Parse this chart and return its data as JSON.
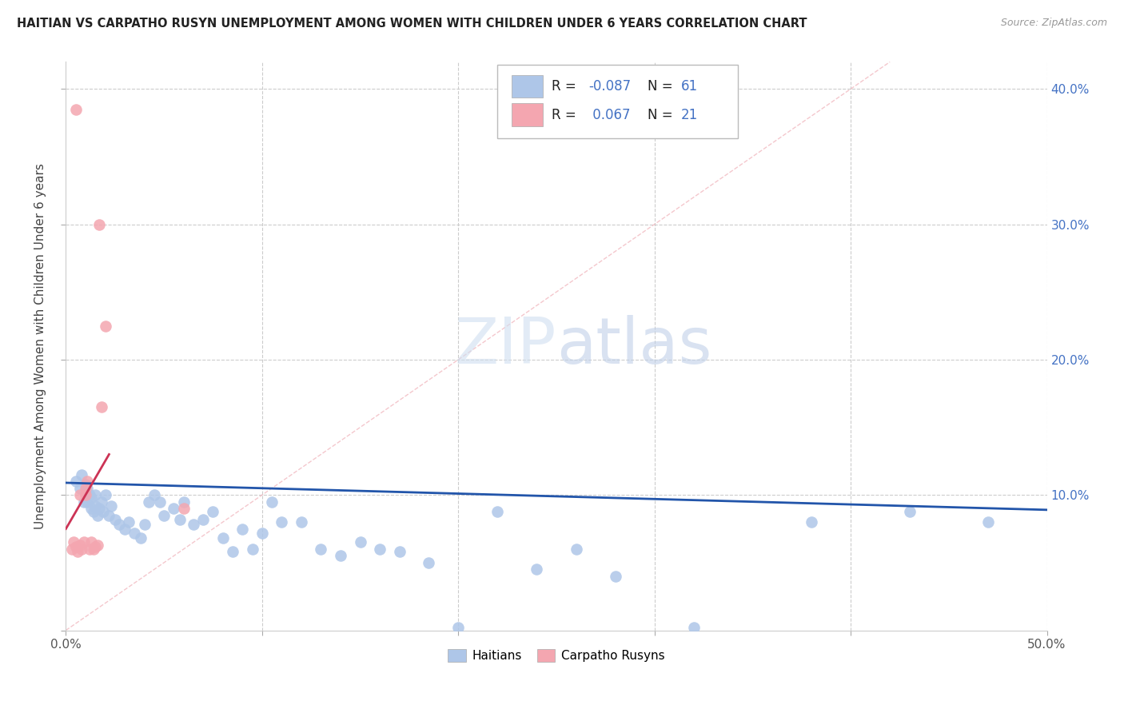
{
  "title": "HAITIAN VS CARPATHO RUSYN UNEMPLOYMENT AMONG WOMEN WITH CHILDREN UNDER 6 YEARS CORRELATION CHART",
  "source": "Source: ZipAtlas.com",
  "ylabel": "Unemployment Among Women with Children Under 6 years",
  "xlim": [
    0.0,
    0.5
  ],
  "ylim": [
    0.0,
    0.42
  ],
  "legend_haitian": "Haitians",
  "legend_carpatho": "Carpatho Rusyns",
  "r_haitian": "-0.087",
  "n_haitian": "61",
  "r_carpatho": "0.067",
  "n_carpatho": "21",
  "haitian_color": "#aec6e8",
  "carpatho_color": "#f4a6b0",
  "haitian_line_color": "#2255aa",
  "carpatho_line_color": "#cc3355",
  "watermark": "ZIPatlas",
  "haitian_points_x": [
    0.005,
    0.007,
    0.008,
    0.009,
    0.01,
    0.01,
    0.011,
    0.011,
    0.012,
    0.013,
    0.013,
    0.014,
    0.015,
    0.015,
    0.016,
    0.017,
    0.018,
    0.019,
    0.02,
    0.022,
    0.023,
    0.025,
    0.027,
    0.03,
    0.032,
    0.035,
    0.038,
    0.04,
    0.042,
    0.045,
    0.048,
    0.05,
    0.055,
    0.058,
    0.06,
    0.065,
    0.07,
    0.075,
    0.08,
    0.085,
    0.09,
    0.095,
    0.1,
    0.105,
    0.11,
    0.12,
    0.13,
    0.14,
    0.15,
    0.16,
    0.17,
    0.185,
    0.2,
    0.22,
    0.24,
    0.26,
    0.28,
    0.32,
    0.38,
    0.43,
    0.47
  ],
  "haitian_points_y": [
    0.11,
    0.105,
    0.115,
    0.095,
    0.1,
    0.108,
    0.095,
    0.105,
    0.1,
    0.09,
    0.098,
    0.088,
    0.092,
    0.1,
    0.085,
    0.09,
    0.095,
    0.088,
    0.1,
    0.085,
    0.092,
    0.082,
    0.078,
    0.075,
    0.08,
    0.072,
    0.068,
    0.078,
    0.095,
    0.1,
    0.095,
    0.085,
    0.09,
    0.082,
    0.095,
    0.078,
    0.082,
    0.088,
    0.068,
    0.058,
    0.075,
    0.06,
    0.072,
    0.095,
    0.08,
    0.08,
    0.06,
    0.055,
    0.065,
    0.06,
    0.058,
    0.05,
    0.002,
    0.088,
    0.045,
    0.06,
    0.04,
    0.002,
    0.08,
    0.088,
    0.08
  ],
  "carpatho_points_x": [
    0.003,
    0.004,
    0.005,
    0.005,
    0.006,
    0.007,
    0.007,
    0.008,
    0.009,
    0.01,
    0.01,
    0.011,
    0.012,
    0.013,
    0.014,
    0.015,
    0.016,
    0.017,
    0.018,
    0.02,
    0.06
  ],
  "carpatho_points_y": [
    0.06,
    0.065,
    0.385,
    0.062,
    0.058,
    0.1,
    0.063,
    0.06,
    0.065,
    0.1,
    0.105,
    0.11,
    0.06,
    0.065,
    0.06,
    0.062,
    0.063,
    0.3,
    0.165,
    0.225,
    0.09
  ]
}
